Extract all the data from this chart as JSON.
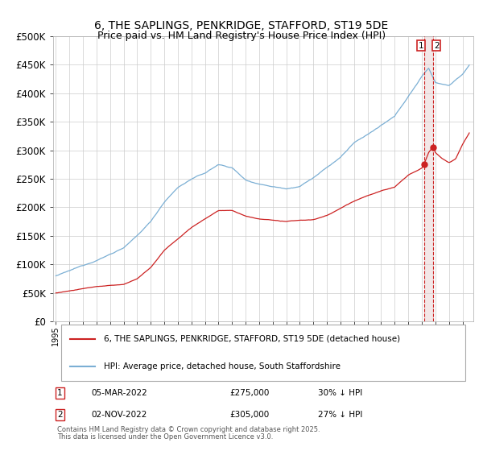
{
  "title": "6, THE SAPLINGS, PENKRIDGE, STAFFORD, ST19 5DE",
  "subtitle": "Price paid vs. HM Land Registry's House Price Index (HPI)",
  "ylim": [
    0,
    500000
  ],
  "yticks": [
    0,
    50000,
    100000,
    150000,
    200000,
    250000,
    300000,
    350000,
    400000,
    450000,
    500000
  ],
  "ytick_labels": [
    "£0",
    "£50K",
    "£100K",
    "£150K",
    "£200K",
    "£250K",
    "£300K",
    "£350K",
    "£400K",
    "£450K",
    "£500K"
  ],
  "hpi_color": "#7bafd4",
  "price_color": "#cc2222",
  "dashed_color": "#cc2222",
  "shade_color": "#e8d0d0",
  "legend_label_price": "6, THE SAPLINGS, PENKRIDGE, STAFFORD, ST19 5DE (detached house)",
  "legend_label_hpi": "HPI: Average price, detached house, South Staffordshire",
  "transaction1_year": 2022.17,
  "transaction1_price": 275000,
  "transaction2_year": 2022.84,
  "transaction2_price": 305000,
  "footnote1": "Contains HM Land Registry data © Crown copyright and database right 2025.",
  "footnote2": "This data is licensed under the Open Government Licence v3.0.",
  "background_color": "#ffffff",
  "grid_color": "#cccccc",
  "xlim_left": 1994.8,
  "xlim_right": 2025.8
}
